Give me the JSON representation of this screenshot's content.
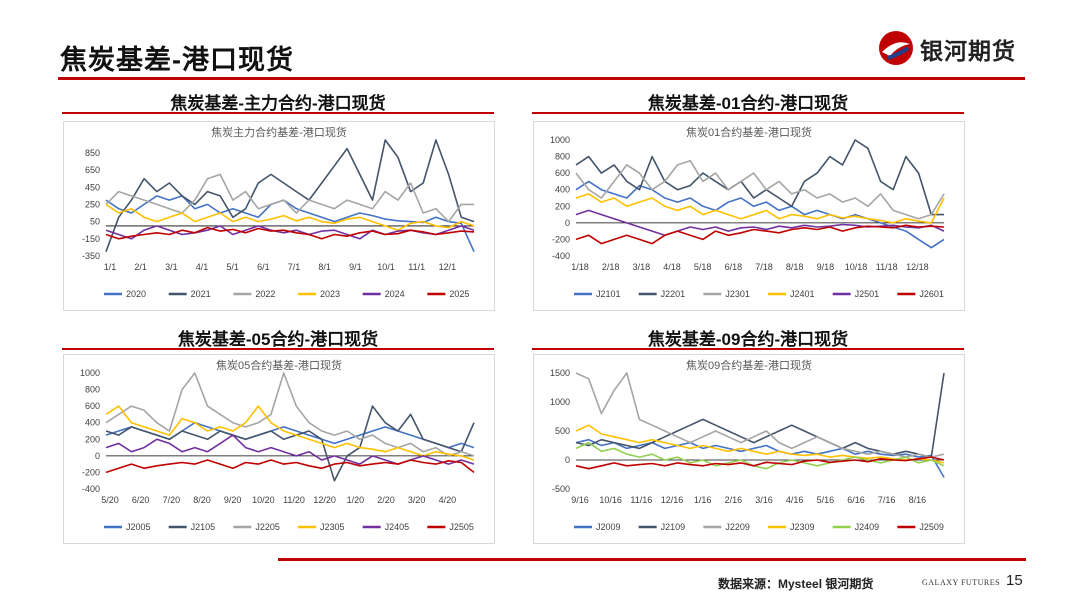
{
  "page": {
    "title": "焦炭基差-港口现货",
    "logo_text": "银河期货",
    "source_label": "数据来源：Mysteel 银河期货",
    "brand_en": "GALAXY FUTURES",
    "page_number": "15"
  },
  "colors": {
    "accent": "#c00000"
  },
  "chart_data": [
    {
      "panel_header": "焦炭基差-主力合约-港口现货",
      "title": "焦炭主力合约基差-港口现货",
      "type": "line",
      "x_ticks": [
        "1/1",
        "2/1",
        "3/1",
        "4/1",
        "5/1",
        "6/1",
        "7/1",
        "8/1",
        "9/1",
        "10/1",
        "11/1",
        "12/1"
      ],
      "y_ticks": [
        "-350",
        "-150",
        "50",
        "250",
        "450",
        "650",
        "850"
      ],
      "ylim": [
        -350,
        1000
      ],
      "series": [
        {
          "name": "2020",
          "color": "#4472c4",
          "values": [
            300,
            200,
            150,
            250,
            350,
            300,
            350,
            200,
            250,
            150,
            200,
            150,
            100,
            250,
            300,
            200,
            150,
            100,
            50,
            100,
            150,
            120,
            80,
            60,
            50,
            40,
            100,
            50,
            30,
            -300
          ]
        },
        {
          "name": "2021",
          "color": "#44546a",
          "values": [
            -300,
            100,
            300,
            550,
            400,
            500,
            350,
            250,
            400,
            350,
            100,
            200,
            500,
            600,
            500,
            400,
            300,
            500,
            700,
            900,
            600,
            300,
            1000,
            800,
            400,
            500,
            1000,
            600,
            100,
            50
          ]
        },
        {
          "name": "2022",
          "color": "#a5a5a5",
          "values": [
            250,
            400,
            350,
            300,
            250,
            200,
            150,
            300,
            550,
            600,
            300,
            400,
            200,
            250,
            300,
            150,
            300,
            250,
            200,
            300,
            250,
            200,
            400,
            300,
            500,
            150,
            200,
            50,
            250,
            250
          ]
        },
        {
          "name": "2023",
          "color": "#ffc000",
          "values": [
            250,
            150,
            200,
            100,
            50,
            100,
            150,
            50,
            100,
            150,
            50,
            100,
            50,
            80,
            120,
            60,
            100,
            50,
            30,
            80,
            100,
            50,
            0,
            -50,
            30,
            50,
            0,
            -20,
            50,
            0
          ]
        },
        {
          "name": "2024",
          "color": "#7030a0",
          "values": [
            -50,
            -100,
            -150,
            -50,
            0,
            -50,
            -100,
            -80,
            -50,
            0,
            -100,
            -50,
            0,
            -50,
            -80,
            -50,
            -100,
            -60,
            -50,
            -100,
            -150,
            -50,
            -100,
            -60,
            -50,
            -80,
            -100,
            -50,
            0,
            -50
          ]
        },
        {
          "name": "2025",
          "color": "#c00000",
          "values": [
            -100,
            -150,
            -120,
            -100,
            -80,
            -100,
            -50,
            -80,
            -20,
            -60,
            -40,
            -80,
            -30,
            -60,
            -50,
            -80,
            -100,
            -150,
            -100,
            -120,
            -80,
            -60,
            -100,
            -90,
            -50,
            -70,
            -100,
            -80,
            -60,
            -70
          ]
        }
      ]
    },
    {
      "panel_header": "焦炭基差-01合约-港口现货",
      "title": "焦炭01合约基差-港口现货",
      "type": "line",
      "x_ticks": [
        "1/18",
        "2/18",
        "3/18",
        "4/18",
        "5/18",
        "6/18",
        "7/18",
        "8/18",
        "9/18",
        "10/18",
        "11/18",
        "12/18"
      ],
      "y_ticks": [
        "-400",
        "-200",
        "0",
        "200",
        "400",
        "600",
        "800",
        "1000"
      ],
      "ylim": [
        -400,
        1000
      ],
      "series": [
        {
          "name": "J2101",
          "color": "#4472c4",
          "values": [
            400,
            500,
            400,
            350,
            300,
            450,
            400,
            300,
            250,
            300,
            200,
            150,
            250,
            300,
            200,
            250,
            150,
            200,
            100,
            150,
            100,
            50,
            100,
            50,
            0,
            -50,
            -100,
            -200,
            -300,
            -200
          ]
        },
        {
          "name": "J2201",
          "color": "#44546a",
          "values": [
            700,
            800,
            600,
            700,
            500,
            400,
            800,
            500,
            400,
            450,
            600,
            500,
            400,
            500,
            300,
            400,
            300,
            200,
            500,
            600,
            800,
            700,
            1000,
            900,
            500,
            400,
            800,
            600,
            100,
            100
          ]
        },
        {
          "name": "J2301",
          "color": "#a5a5a5",
          "values": [
            600,
            400,
            300,
            500,
            700,
            600,
            400,
            500,
            700,
            750,
            500,
            600,
            400,
            500,
            600,
            400,
            500,
            350,
            400,
            300,
            350,
            250,
            300,
            200,
            350,
            150,
            100,
            50,
            100,
            350
          ]
        },
        {
          "name": "J2401",
          "color": "#ffc000",
          "values": [
            300,
            350,
            250,
            300,
            200,
            250,
            300,
            200,
            150,
            200,
            100,
            150,
            100,
            50,
            100,
            150,
            50,
            100,
            80,
            50,
            100,
            60,
            80,
            50,
            30,
            0,
            50,
            20,
            0,
            300
          ]
        },
        {
          "name": "J2501",
          "color": "#7030a0",
          "values": [
            100,
            150,
            100,
            50,
            0,
            -50,
            -100,
            -150,
            -100,
            -50,
            -80,
            -50,
            -100,
            -60,
            -50,
            -80,
            -40,
            -60,
            -30,
            -50,
            -40,
            -20,
            -30,
            -50,
            -40,
            -30,
            -50,
            -60,
            -30,
            -100
          ]
        },
        {
          "name": "J2601",
          "color": "#c00000",
          "values": [
            -200,
            -150,
            -250,
            -200,
            -150,
            -200,
            -250,
            -150,
            -100,
            -150,
            -200,
            -100,
            -150,
            -120,
            -80,
            -100,
            -120,
            -80,
            -60,
            -80,
            -50,
            -100,
            -60,
            -40,
            -50,
            -60,
            -30,
            -50,
            -40,
            -50
          ]
        }
      ]
    },
    {
      "panel_header": "焦炭基差-05合约-港口现货",
      "title": "焦炭05合约基差-港口现货",
      "type": "line",
      "x_ticks": [
        "5/20",
        "6/20",
        "7/20",
        "8/20",
        "9/20",
        "10/20",
        "11/20",
        "12/20",
        "1/20",
        "2/20",
        "3/20",
        "4/20"
      ],
      "y_ticks": [
        "-400",
        "-200",
        "0",
        "200",
        "400",
        "600",
        "800",
        "1000"
      ],
      "ylim": [
        -400,
        1000
      ],
      "series": [
        {
          "name": "J2005",
          "color": "#4472c4",
          "values": [
            250,
            300,
            350,
            300,
            250,
            200,
            300,
            400,
            350,
            300,
            250,
            200,
            250,
            300,
            350,
            300,
            250,
            200,
            150,
            200,
            250,
            300,
            350,
            300,
            250,
            200,
            150,
            100,
            150,
            100
          ]
        },
        {
          "name": "J2105",
          "color": "#44546a",
          "values": [
            300,
            250,
            350,
            300,
            250,
            200,
            300,
            250,
            200,
            300,
            250,
            200,
            250,
            300,
            200,
            250,
            300,
            200,
            -300,
            0,
            100,
            600,
            400,
            300,
            500,
            200,
            150,
            100,
            50,
            400
          ]
        },
        {
          "name": "J2205",
          "color": "#a5a5a5",
          "values": [
            400,
            500,
            600,
            550,
            400,
            300,
            800,
            1000,
            600,
            500,
            400,
            350,
            400,
            500,
            1000,
            600,
            400,
            300,
            250,
            300,
            200,
            250,
            150,
            100,
            150,
            50,
            100,
            0,
            50,
            0
          ]
        },
        {
          "name": "J2305",
          "color": "#ffc000",
          "values": [
            500,
            600,
            400,
            350,
            300,
            250,
            450,
            400,
            300,
            350,
            300,
            400,
            600,
            400,
            300,
            250,
            200,
            150,
            100,
            150,
            100,
            80,
            50,
            100,
            50,
            0,
            50,
            20,
            0,
            -50
          ]
        },
        {
          "name": "J2405",
          "color": "#7030a0",
          "values": [
            100,
            150,
            50,
            100,
            200,
            150,
            50,
            100,
            50,
            150,
            250,
            100,
            50,
            100,
            50,
            0,
            50,
            -50,
            0,
            -50,
            -100,
            0,
            -50,
            -100,
            -50,
            0,
            -50,
            -100,
            -50,
            -100
          ]
        },
        {
          "name": "J2505",
          "color": "#c00000",
          "values": [
            -200,
            -150,
            -100,
            -150,
            -120,
            -100,
            -80,
            -100,
            -50,
            -100,
            -150,
            -80,
            -100,
            -50,
            -100,
            -80,
            -120,
            -150,
            -100,
            -80,
            -120,
            -100,
            -80,
            -100,
            -50,
            -80,
            -100,
            -60,
            -80,
            -200
          ]
        }
      ]
    },
    {
      "panel_header": "焦炭基差-09合约-港口现货",
      "title": "焦炭09合约基差-港口现货",
      "type": "line",
      "x_ticks": [
        "9/16",
        "10/16",
        "11/16",
        "12/16",
        "1/16",
        "2/16",
        "3/16",
        "4/16",
        "5/16",
        "6/16",
        "7/16",
        "8/16"
      ],
      "y_ticks": [
        "-500",
        "0",
        "500",
        "1000",
        "1500"
      ],
      "ylim": [
        -500,
        1500
      ],
      "series": [
        {
          "name": "J2009",
          "color": "#4472c4",
          "values": [
            300,
            350,
            250,
            300,
            200,
            250,
            300,
            200,
            250,
            300,
            200,
            250,
            200,
            150,
            200,
            250,
            150,
            100,
            150,
            100,
            150,
            200,
            100,
            150,
            100,
            80,
            100,
            50,
            80,
            -300
          ]
        },
        {
          "name": "J2109",
          "color": "#44546a",
          "values": [
            300,
            250,
            350,
            300,
            250,
            200,
            300,
            400,
            500,
            600,
            700,
            600,
            500,
            400,
            300,
            400,
            500,
            600,
            500,
            400,
            300,
            200,
            300,
            200,
            150,
            100,
            150,
            100,
            50,
            1500
          ]
        },
        {
          "name": "J2209",
          "color": "#a5a5a5",
          "values": [
            1500,
            1400,
            800,
            1200,
            1500,
            700,
            600,
            500,
            400,
            300,
            400,
            500,
            400,
            300,
            400,
            500,
            300,
            200,
            300,
            400,
            300,
            200,
            150,
            100,
            150,
            100,
            50,
            100,
            50,
            100
          ]
        },
        {
          "name": "J2309",
          "color": "#ffc000",
          "values": [
            500,
            600,
            450,
            400,
            350,
            300,
            350,
            300,
            250,
            200,
            250,
            200,
            150,
            200,
            150,
            100,
            150,
            100,
            80,
            100,
            50,
            80,
            50,
            30,
            50,
            20,
            0,
            20,
            0,
            -50
          ]
        },
        {
          "name": "J2409",
          "color": "#92d050",
          "values": [
            200,
            300,
            150,
            200,
            100,
            50,
            100,
            0,
            50,
            -50,
            0,
            -100,
            -50,
            0,
            -100,
            -150,
            -50,
            0,
            -50,
            -100,
            -50,
            0,
            50,
            0,
            -50,
            0,
            50,
            -50,
            0,
            -100
          ]
        },
        {
          "name": "J2509",
          "color": "#c00000",
          "values": [
            -100,
            -150,
            -100,
            -50,
            -100,
            -80,
            -60,
            -100,
            -50,
            -80,
            -100,
            -60,
            -80,
            -50,
            -100,
            -40,
            -60,
            -80,
            -20,
            0,
            -40,
            -20,
            0,
            -30,
            20,
            0,
            -10,
            20,
            50,
            0
          ]
        }
      ]
    }
  ]
}
